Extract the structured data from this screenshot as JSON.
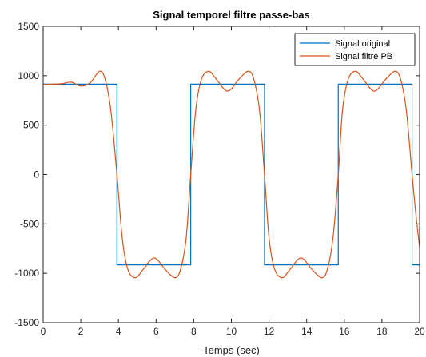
{
  "chart_data": {
    "type": "line",
    "title": "Signal temporel filtre passe-bas",
    "xlabel": "Temps (sec)",
    "ylabel": "",
    "xlim": [
      0,
      20
    ],
    "ylim": [
      -1500,
      1500
    ],
    "x_ticks": [
      0,
      2,
      4,
      6,
      8,
      10,
      12,
      14,
      16,
      18,
      20
    ],
    "y_ticks": [
      -1500,
      -1000,
      -500,
      0,
      500,
      1000,
      1500
    ],
    "grid": false,
    "legend_position": "top-right",
    "series": [
      {
        "name": "Signal original",
        "color": "#0072BD",
        "style": "step",
        "x": [
          0,
          3.92,
          3.92,
          7.84,
          7.84,
          11.76,
          11.76,
          15.68,
          15.68,
          19.6,
          19.6,
          20
        ],
        "y": [
          915,
          915,
          -915,
          -915,
          915,
          915,
          -915,
          -915,
          915,
          915,
          -915,
          -915
        ]
      },
      {
        "name": "Signal filtre PB",
        "color": "#D95319",
        "style": "smooth",
        "x": [
          0,
          0.5,
          1.0,
          1.5,
          2.0,
          2.5,
          3.0,
          3.3,
          3.6,
          3.92,
          4.2,
          4.5,
          4.9,
          5.3,
          5.9,
          6.5,
          7.0,
          7.3,
          7.6,
          7.84,
          8.1,
          8.4,
          8.8,
          9.2,
          9.8,
          10.4,
          10.9,
          11.2,
          11.5,
          11.76,
          12.0,
          12.3,
          12.7,
          13.1,
          13.7,
          14.3,
          14.8,
          15.1,
          15.4,
          15.68,
          15.9,
          16.2,
          16.6,
          17.0,
          17.6,
          18.2,
          18.7,
          19.0,
          19.3,
          19.6,
          19.8,
          20.0
        ],
        "y": [
          910,
          915,
          920,
          935,
          895,
          930,
          1045,
          960,
          640,
          0,
          -640,
          -960,
          -1045,
          -965,
          -845,
          -965,
          -1045,
          -960,
          -640,
          0,
          640,
          960,
          1045,
          965,
          845,
          965,
          1045,
          960,
          640,
          0,
          -640,
          -960,
          -1045,
          -965,
          -845,
          -965,
          -1045,
          -960,
          -640,
          0,
          640,
          960,
          1045,
          965,
          845,
          965,
          1045,
          960,
          640,
          0,
          -400,
          -740
        ]
      }
    ]
  }
}
